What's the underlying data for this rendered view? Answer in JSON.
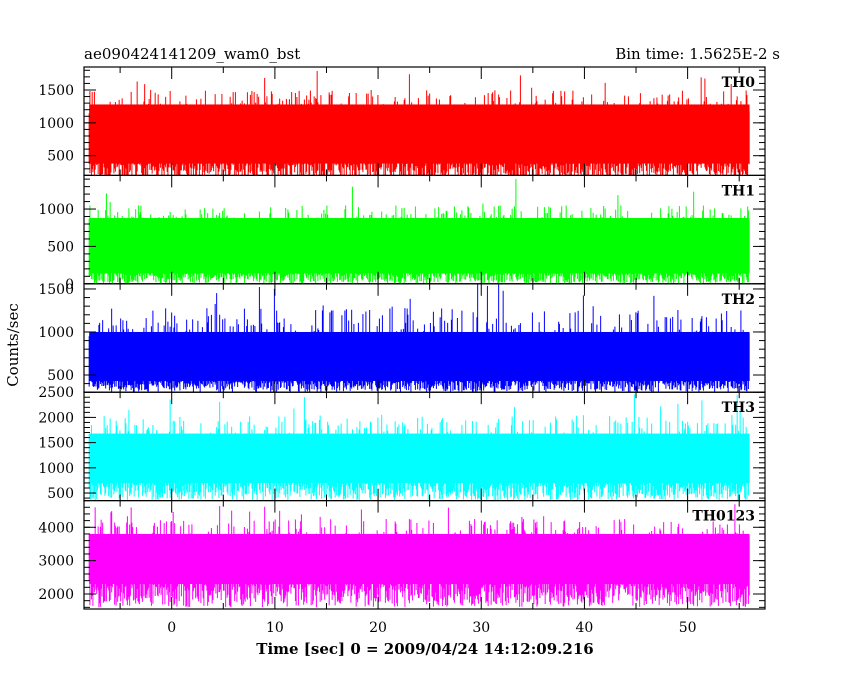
{
  "chart_data": {
    "type": "line",
    "title_left": "ae090424141209_wam0_bst",
    "title_right": "Bin time: 1.5625E-2 s",
    "xlabel": "Time [sec] 0 = 2009/04/24 14:12:09.216",
    "ylabel": "Counts/sec",
    "xlim": [
      -8.5,
      57.5
    ],
    "x_data_range": [
      -8.0,
      56.0
    ],
    "x_ticks": [
      0,
      10,
      20,
      30,
      40,
      50
    ],
    "grid": false,
    "panels": [
      {
        "name": "TH0",
        "color": "#ff0000",
        "ylim": [
          200,
          1850
        ],
        "y_ticks": [
          500,
          1000,
          1500
        ],
        "level_range": [
          380,
          1280
        ],
        "typical_max": 1500,
        "max": 1800,
        "min": 100
      },
      {
        "name": "TH1",
        "color": "#00ff00",
        "ylim": [
          0,
          1450
        ],
        "y_ticks": [
          0,
          500,
          1000
        ],
        "level_range": [
          140,
          880
        ],
        "typical_max": 1050,
        "max": 1420,
        "min": 0
      },
      {
        "name": "TH2",
        "color": "#0000ff",
        "ylim": [
          300,
          1560
        ],
        "y_ticks": [
          500,
          1000,
          1500
        ],
        "level_range": [
          430,
          1000
        ],
        "typical_max": 1280,
        "max": 1560,
        "min": 300
      },
      {
        "name": "TH3",
        "color": "#00ffff",
        "ylim": [
          350,
          2500
        ],
        "y_ticks": [
          500,
          1000,
          1500,
          2000,
          2500
        ],
        "level_range": [
          700,
          1680
        ],
        "typical_max": 2050,
        "max": 2480,
        "min": 350
      },
      {
        "name": "TH0123",
        "color": "#ff00ff",
        "ylim": [
          1550,
          4800
        ],
        "y_ticks": [
          2000,
          3000,
          4000
        ],
        "level_range": [
          2300,
          3800
        ],
        "typical_max": 4250,
        "max": 4750,
        "min": 1600
      }
    ]
  }
}
